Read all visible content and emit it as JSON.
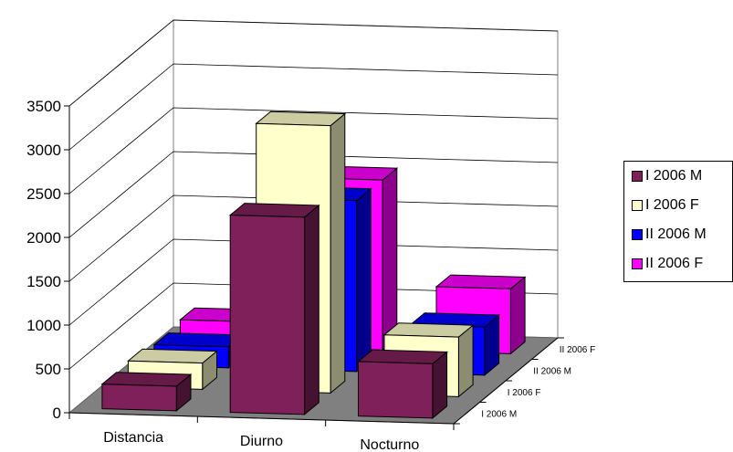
{
  "chart_data": {
    "type": "bar",
    "subtype": "3d-column",
    "categories": [
      "Distancia",
      "Diurno",
      "Nocturno"
    ],
    "series": [
      {
        "name": "I 2006 M",
        "values": [
          280,
          2250,
          620
        ],
        "color": "#80205A"
      },
      {
        "name": "I 2006 F",
        "values": [
          300,
          3050,
          680
        ],
        "color": "#FFFFCC"
      },
      {
        "name": "II 2006 M",
        "values": [
          240,
          1950,
          550
        ],
        "color": "#0000FF"
      },
      {
        "name": "II 2006 F",
        "values": [
          280,
          1940,
          740
        ],
        "color": "#FF00FF"
      }
    ],
    "depth_labels": [
      "I 2006 M",
      "I 2006 F",
      "II 2006 M",
      "II 2006 F"
    ],
    "ylim": [
      0,
      3500
    ],
    "yticks": [
      "0",
      "500",
      "1000",
      "1500",
      "2000",
      "2500",
      "3000",
      "3500"
    ],
    "grid": true,
    "floor_color": "#808080",
    "legend_position": "right"
  }
}
